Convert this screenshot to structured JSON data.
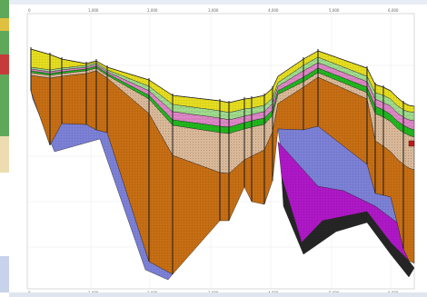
{
  "cross_section": {
    "x_ticks": [
      "0",
      "1,000",
      "2,000",
      "3,000",
      "4,000",
      "5,000",
      "6,000"
    ],
    "y_ticks": [
      "",
      "",
      "",
      "",
      ""
    ],
    "wells": [
      "",
      "",
      "",
      "",
      "",
      "",
      "",
      "",
      "",
      "",
      "",
      "",
      "",
      "",
      "",
      "",
      "",
      "",
      "",
      ""
    ]
  },
  "colors": {
    "yellow": "#e8df1f",
    "light_green": "#9fe08c",
    "pink": "#e088c8",
    "green": "#22b81e",
    "tan": "#d8b898",
    "orange": "#c86f14",
    "blue": "#7d82d9",
    "magenta": "#b018c8",
    "black": "#262626",
    "red": "#c41616"
  }
}
